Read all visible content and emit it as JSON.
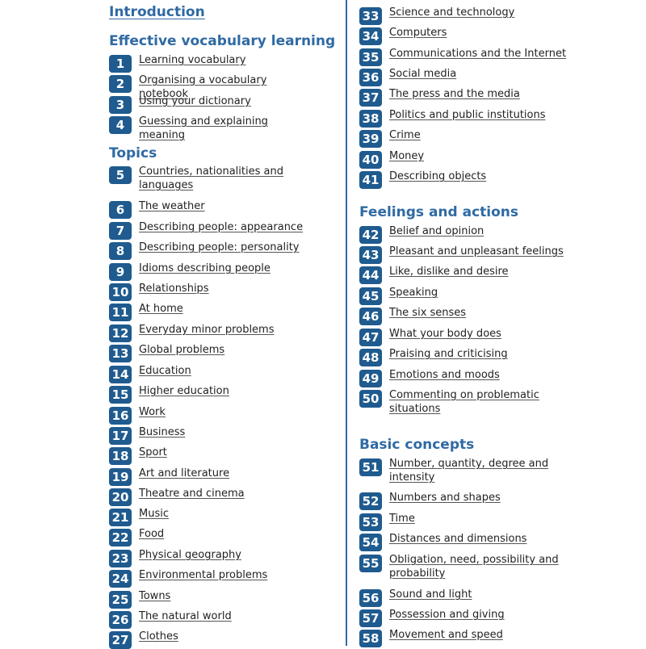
{
  "intro": "Introduction",
  "left": {
    "sections": [
      {
        "title": "Effective vocabulary learning",
        "items": [
          {
            "num": "1",
            "label": "Learning vocabulary"
          },
          {
            "num": "2",
            "label": "Organising a vocabulary notebook"
          },
          {
            "num": "3",
            "label": "Using your dictionary"
          },
          {
            "num": "4",
            "label": "Guessing and explaining meaning"
          }
        ]
      },
      {
        "title": "Topics",
        "items": [
          {
            "num": "5",
            "label": "Countries, nationalities and languages"
          },
          {
            "num": "6",
            "label": "The weather"
          },
          {
            "num": "7",
            "label": "Describing people: appearance"
          },
          {
            "num": "8",
            "label": "Describing people: personality"
          },
          {
            "num": "9",
            "label": "Idioms describing people"
          },
          {
            "num": "10",
            "label": "Relationships"
          },
          {
            "num": "11",
            "label": "At home"
          },
          {
            "num": "12",
            "label": "Everyday minor problems"
          },
          {
            "num": "13",
            "label": "Global problems"
          },
          {
            "num": "14",
            "label": "Education"
          },
          {
            "num": "15",
            "label": "Higher education"
          },
          {
            "num": "16",
            "label": "Work"
          },
          {
            "num": "17",
            "label": "Business"
          },
          {
            "num": "18",
            "label": "Sport"
          },
          {
            "num": "19",
            "label": "Art and literature"
          },
          {
            "num": "20",
            "label": "Theatre and cinema"
          },
          {
            "num": "21",
            "label": "Music"
          },
          {
            "num": "22",
            "label": "Food"
          },
          {
            "num": "23",
            "label": "Physical geography"
          },
          {
            "num": "24",
            "label": "Environmental problems"
          },
          {
            "num": "25",
            "label": "Towns"
          },
          {
            "num": "26",
            "label": "The natural world"
          },
          {
            "num": "27",
            "label": "Clothes"
          }
        ]
      }
    ]
  },
  "right": {
    "sections": [
      {
        "title": "",
        "items": [
          {
            "num": "33",
            "label": "Science and technology"
          },
          {
            "num": "34",
            "label": "Computers"
          },
          {
            "num": "35",
            "label": "Communications and the Internet"
          },
          {
            "num": "36",
            "label": "Social media"
          },
          {
            "num": "37",
            "label": "The press and the media"
          },
          {
            "num": "38",
            "label": "Politics and public institutions"
          },
          {
            "num": "39",
            "label": "Crime"
          },
          {
            "num": "40",
            "label": "Money"
          },
          {
            "num": "41",
            "label": "Describing objects"
          }
        ]
      },
      {
        "title": "Feelings and actions",
        "items": [
          {
            "num": "42",
            "label": "Belief and opinion"
          },
          {
            "num": "43",
            "label": "Pleasant and unpleasant feelings"
          },
          {
            "num": "44",
            "label": "Like, dislike and desire"
          },
          {
            "num": "45",
            "label": "Speaking"
          },
          {
            "num": "46",
            "label": "The six senses"
          },
          {
            "num": "47",
            "label": "What your body does"
          },
          {
            "num": "48",
            "label": "Praising and criticising"
          },
          {
            "num": "49",
            "label": "Emotions and moods"
          },
          {
            "num": "50",
            "label": "Commenting on problematic situations"
          }
        ]
      },
      {
        "title": "Basic concepts",
        "items": [
          {
            "num": "51",
            "label": "Number, quantity, degree and intensity"
          },
          {
            "num": "52",
            "label": "Numbers and shapes"
          },
          {
            "num": "53",
            "label": "Time"
          },
          {
            "num": "54",
            "label": "Distances and dimensions"
          },
          {
            "num": "55",
            "label": "Obligation, need, possibility and probability"
          },
          {
            "num": "56",
            "label": "Sound and light"
          },
          {
            "num": "57",
            "label": "Possession and giving"
          },
          {
            "num": "58",
            "label": "Movement and speed"
          }
        ]
      }
    ]
  }
}
